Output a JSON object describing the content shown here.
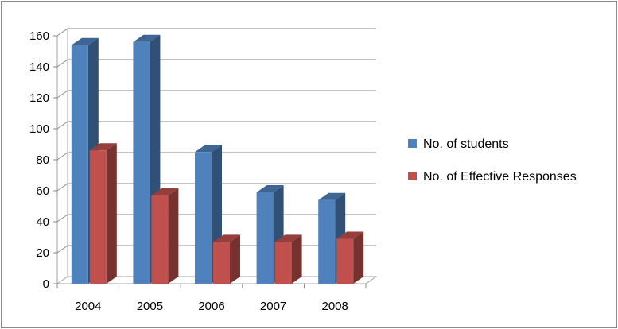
{
  "chart_data": {
    "type": "bar",
    "title": "",
    "xlabel": "",
    "ylabel": "",
    "categories": [
      "2004",
      "2005",
      "2006",
      "2007",
      "2008"
    ],
    "series": [
      {
        "name": "No. of students",
        "values": [
          154,
          156,
          85,
          59,
          54
        ],
        "color": "#4f81bd"
      },
      {
        "name": "No. of Effective Responses",
        "values": [
          86,
          57,
          27,
          27,
          29
        ],
        "color": "#c0504d"
      }
    ],
    "ylim": [
      0,
      160
    ],
    "yticks": [
      "0",
      "20",
      "40",
      "60",
      "80",
      "100",
      "120",
      "140",
      "160"
    ],
    "grid": true,
    "legend_position": "right",
    "three_d": true
  }
}
